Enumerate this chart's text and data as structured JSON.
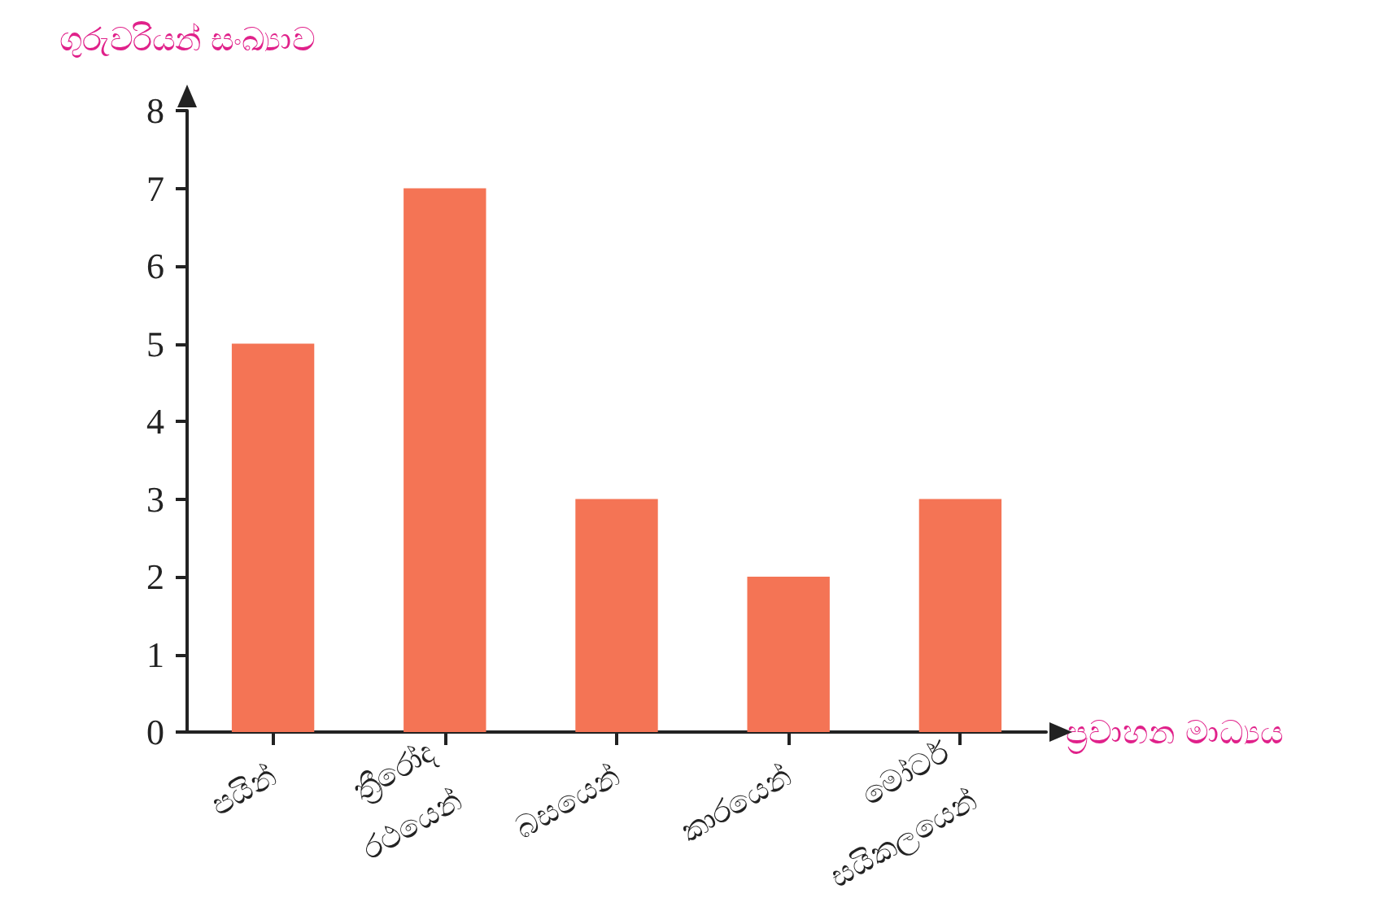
{
  "chart_data": {
    "type": "bar",
    "xlabel": "ප්‍රවාහන මාධ්‍යය",
    "ylabel": "ගුරුවරියන් සංඛ්‍යාව",
    "categories": [
      "පයින්",
      "ත්‍රීරෝද\nරථයෙන්",
      "බසයෙන්",
      "කාරයෙන්",
      "මෝටර්\nසයිකලයෙන්"
    ],
    "values": [
      5,
      7,
      3,
      2,
      3
    ],
    "color": "#f47455",
    "ylim": [
      0,
      8
    ],
    "yticks": [
      0,
      1,
      2,
      3,
      4,
      5,
      6,
      7,
      8
    ],
    "grid": false
  }
}
